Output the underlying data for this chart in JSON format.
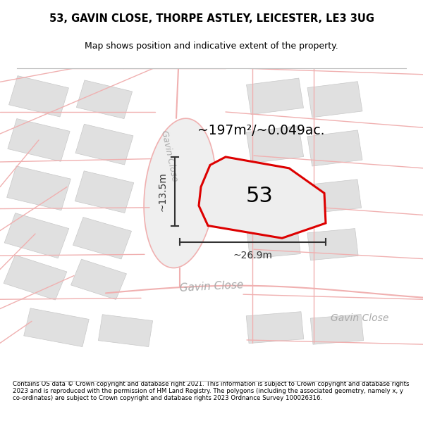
{
  "title_line1": "53, GAVIN CLOSE, THORPE ASTLEY, LEICESTER, LE3 3UG",
  "title_line2": "Map shows position and indicative extent of the property.",
  "footer_text": "Contains OS data © Crown copyright and database right 2021. This information is subject to Crown copyright and database rights 2023 and is reproduced with the permission of HM Land Registry. The polygons (including the associated geometry, namely x, y co-ordinates) are subject to Crown copyright and database rights 2023 Ordnance Survey 100026316.",
  "area_label": "~197m²/~0.049ac.",
  "number_label": "53",
  "width_label": "~26.9m",
  "height_label": "~13.5m",
  "road_color": "#f0b0b0",
  "road_fill": "#f5e8e8",
  "highlight_color": "#dd0000",
  "highlight_fill": "#eeeeee",
  "block_fc": "#e0e0e0",
  "block_ec": "#c8c8c8",
  "map_bg": "#ffffff",
  "culdesac_fill": "#eeeeee",
  "label_color": "#aaaaaa",
  "dim_color": "#333333"
}
